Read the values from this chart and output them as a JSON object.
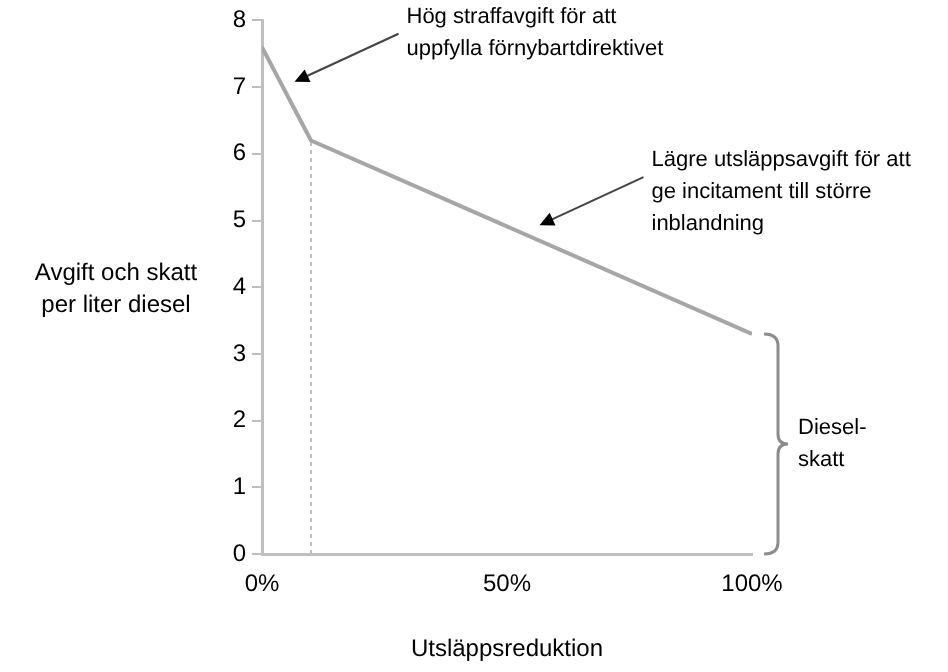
{
  "chart_data": {
    "type": "line",
    "x": [
      0,
      10,
      100
    ],
    "values": [
      7.6,
      6.2,
      3.3
    ],
    "color": "#a6a6a6",
    "xlim": [
      0,
      100
    ],
    "ylim": [
      0,
      8
    ],
    "xticks": [
      {
        "value": 0,
        "label": "0%"
      },
      {
        "value": 50,
        "label": "50%"
      },
      {
        "value": 100,
        "label": "100%"
      }
    ],
    "yticks": [
      0,
      1,
      2,
      3,
      4,
      5,
      6,
      7,
      8
    ],
    "xlabel": "Utsläppsreduktion",
    "ylabel": "Avgift och skatt per liter diesel",
    "ref_lines": [
      {
        "axis": "x",
        "value": 10,
        "line_style": "dotted",
        "color": "#bfbfbf"
      }
    ],
    "annotations": [
      "Hög straffavgift för att uppfylla förnybartdirektivet",
      "Lägre utsläppsavgift för att ge incitament till större inblandning",
      "Diesel-skatt"
    ]
  }
}
